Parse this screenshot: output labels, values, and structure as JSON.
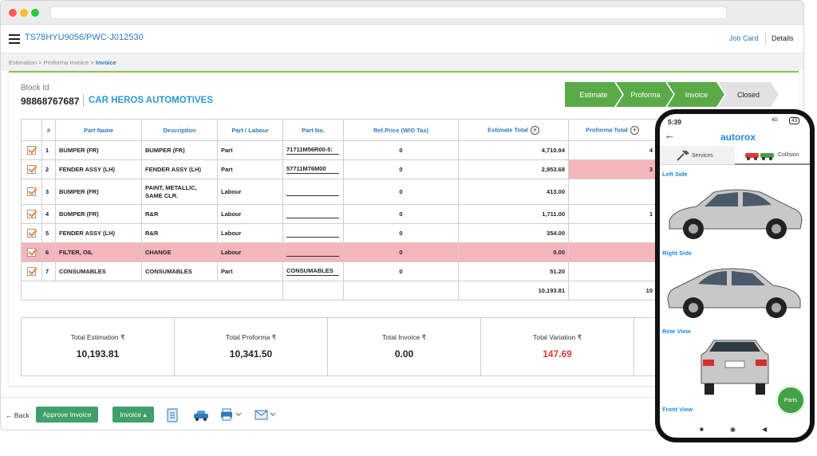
{
  "header": {
    "job_id": "TS78HYU9056/PWC-J012530",
    "job_card_label": "Job Card",
    "details_label": "Details"
  },
  "breadcrumb": {
    "items": [
      "Estimation",
      "Proforma Invoice",
      "Invoice"
    ],
    "separator": ">"
  },
  "block": {
    "label": "Block Id",
    "id": "98868767687",
    "company": "CAR HEROS AUTOMOTIVES"
  },
  "steps": [
    {
      "label": "Estimate",
      "state": "done"
    },
    {
      "label": "Proforma",
      "state": "done"
    },
    {
      "label": "Invoice",
      "state": "done"
    },
    {
      "label": "Closed",
      "state": "pending"
    }
  ],
  "table": {
    "headers": {
      "num": "#",
      "part_name": "Part Name",
      "description": "Description",
      "part_labour": "Part / Labour",
      "part_no": "Part No.",
      "ref_price": "Ref.Price (W/O Tax)",
      "estimate_total": "Estimate Total",
      "proforma_total": "Proforma Total"
    },
    "rows": [
      {
        "num": "1",
        "part_name": "BUMPER (FR)",
        "description": "BUMPER (FR)",
        "type": "Part",
        "part_no": "71711M56R00-5:",
        "ref_price": "0",
        "estimate_total": "4,710.94",
        "proforma_total": "4"
      },
      {
        "num": "2",
        "part_name": "FENDER ASSY (LH)",
        "description": "FENDER ASSY (LH)",
        "type": "Part",
        "part_no": "57711M76M00",
        "ref_price": "0",
        "estimate_total": "2,953.68",
        "proforma_total": "3"
      },
      {
        "num": "3",
        "part_name": "BUMPER (FR)",
        "description": "PAINT, METALLIC,",
        "description2": "SAME CLR.",
        "type": "Labour",
        "part_no": "",
        "ref_price": "0",
        "estimate_total": "413.00",
        "proforma_total": ""
      },
      {
        "num": "4",
        "part_name": "BUMPER (FR)",
        "description": "R&R",
        "type": "Labour",
        "part_no": "",
        "ref_price": "0",
        "estimate_total": "1,711.00",
        "proforma_total": "1"
      },
      {
        "num": "5",
        "part_name": "FENDER ASSY (LH)",
        "description": "R&R",
        "type": "Labour",
        "part_no": "",
        "ref_price": "0",
        "estimate_total": "354.00",
        "proforma_total": ""
      },
      {
        "num": "6",
        "part_name": "FILTER, OIL",
        "description": "CHANGE",
        "type": "Labour",
        "part_no": "",
        "ref_price": "0",
        "estimate_total": "0.00",
        "proforma_total": ""
      },
      {
        "num": "7",
        "part_name": "CONSUMABLES",
        "description": "CONSUMABLES",
        "type": "Part",
        "part_no": "CONSUMABLES",
        "ref_price": "0",
        "estimate_total": "51.20",
        "proforma_total": ""
      }
    ],
    "footer": {
      "estimate_total": "10,193.81",
      "proforma_total": "10"
    }
  },
  "totals": [
    {
      "label": "Total Estimation ₹",
      "value": "10,193.81"
    },
    {
      "label": "Total Proforma ₹",
      "value": "10,341.50"
    },
    {
      "label": "Total Invoice ₹",
      "value": "0.00"
    },
    {
      "label": "Total Variation ₹",
      "value": "147.69"
    }
  ],
  "bottom": {
    "back_label": "Back",
    "approve_label": "Approve Invoice",
    "invoice_label": "Invoice"
  },
  "phone": {
    "time": "5:39",
    "signal": "4G",
    "battery": "43",
    "app_logo": "autorox",
    "tab_services": "Services",
    "tab_collision": "Collision",
    "views": [
      "Left Side",
      "Right Side",
      "Rear View",
      "Front View"
    ],
    "fab_label": "Parts"
  },
  "colors": {
    "accent": "#2a7ac0",
    "green": "#5aab47",
    "highlight_row": "#f4b6bb",
    "variation": "#e53935"
  }
}
